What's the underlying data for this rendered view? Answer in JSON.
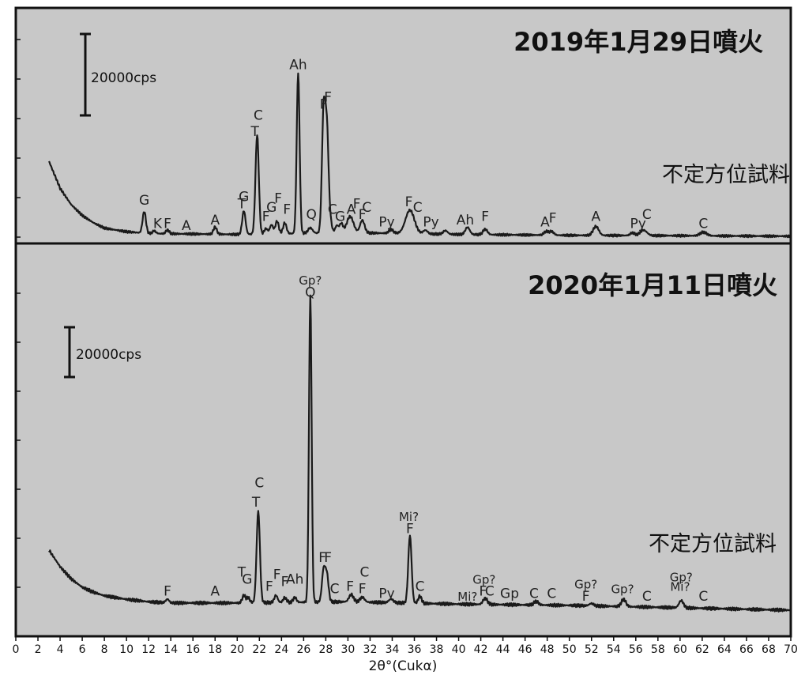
{
  "chart_data": {
    "type": "line",
    "xlabel": "2θ°(Cukα)",
    "xlim": [
      0,
      70
    ],
    "x_ticks": [
      0,
      2,
      4,
      6,
      8,
      10,
      12,
      14,
      16,
      18,
      20,
      22,
      24,
      26,
      28,
      30,
      32,
      34,
      36,
      38,
      40,
      42,
      44,
      46,
      48,
      50,
      52,
      54,
      56,
      58,
      60,
      62,
      64,
      66,
      68,
      70
    ],
    "colors": {
      "panel_bg": "#c8c8c8",
      "trace": "#1a1a1a",
      "frame": "#111111"
    },
    "panels": [
      {
        "title": "2019年1月29日噴火",
        "orientation_label": "不定方位試料",
        "scale_bar_label": "20000cps",
        "scale_bar_cps": 20000,
        "y_max_cps": 105000,
        "series": {
          "baseline": [
            [
              3,
              42000
            ],
            [
              4,
              27000
            ],
            [
              5,
              18000
            ],
            [
              6,
              12000
            ],
            [
              7,
              8000
            ],
            [
              8,
              5000
            ],
            [
              10,
              3000
            ],
            [
              12,
              2000
            ],
            [
              20,
              1500
            ],
            [
              30,
              2500
            ],
            [
              40,
              1500
            ],
            [
              50,
              1000
            ],
            [
              60,
              800
            ],
            [
              70,
              500
            ]
          ],
          "peaks": [
            [
              11.6,
              12000,
              0.15
            ],
            [
              12.5,
              1500,
              0.15
            ],
            [
              13.7,
              2000,
              0.15
            ],
            [
              18.0,
              4000,
              0.15
            ],
            [
              20.6,
              13000,
              0.15
            ],
            [
              21.8,
              55000,
              0.15
            ],
            [
              22.6,
              3000,
              0.15
            ],
            [
              23.1,
              5000,
              0.15
            ],
            [
              23.6,
              7000,
              0.15
            ],
            [
              24.3,
              6000,
              0.15
            ],
            [
              25.5,
              89000,
              0.13
            ],
            [
              26.6,
              3000,
              0.2
            ],
            [
              27.8,
              66000,
              0.15
            ],
            [
              28.1,
              55000,
              0.15
            ],
            [
              28.4,
              6000,
              0.15
            ],
            [
              29.0,
              4000,
              0.15
            ],
            [
              29.4,
              5000,
              0.15
            ],
            [
              30.2,
              9000,
              0.3
            ],
            [
              31.3,
              7000,
              0.2
            ],
            [
              33.9,
              2000,
              0.2
            ],
            [
              35.6,
              13000,
              0.4
            ],
            [
              37.0,
              2000,
              0.2
            ],
            [
              38.8,
              2000,
              0.2
            ],
            [
              40.8,
              4000,
              0.2
            ],
            [
              42.4,
              3000,
              0.2
            ],
            [
              47.9,
              2000,
              0.2
            ],
            [
              48.4,
              2000,
              0.2
            ],
            [
              52.4,
              5000,
              0.25
            ],
            [
              55.7,
              1500,
              0.2
            ],
            [
              56.7,
              3000,
              0.3
            ],
            [
              62.1,
              2000,
              0.3
            ]
          ]
        },
        "peak_labels": [
          {
            "x": 11.6,
            "cps": 18000,
            "text": "G"
          },
          {
            "x": 12.8,
            "cps": 5000,
            "text": "K"
          },
          {
            "x": 13.7,
            "cps": 5000,
            "text": "F"
          },
          {
            "x": 15.4,
            "cps": 4000,
            "text": "A"
          },
          {
            "x": 18.0,
            "cps": 7000,
            "text": "A"
          },
          {
            "x": 20.4,
            "cps": 16000,
            "text": "T"
          },
          {
            "x": 20.6,
            "cps": 20000,
            "text": "G"
          },
          {
            "x": 21.6,
            "cps": 56000,
            "text": "T"
          },
          {
            "x": 21.9,
            "cps": 65000,
            "text": "C"
          },
          {
            "x": 22.6,
            "cps": 9000,
            "text": "F"
          },
          {
            "x": 23.1,
            "cps": 14000,
            "text": "G"
          },
          {
            "x": 23.7,
            "cps": 19000,
            "text": "F"
          },
          {
            "x": 24.5,
            "cps": 13000,
            "text": "F"
          },
          {
            "x": 25.5,
            "cps": 93000,
            "text": "Ah"
          },
          {
            "x": 26.7,
            "cps": 10000,
            "text": "Q"
          },
          {
            "x": 27.8,
            "cps": 71000,
            "text": "F"
          },
          {
            "x": 28.2,
            "cps": 75000,
            "text": "F"
          },
          {
            "x": 28.6,
            "cps": 13000,
            "text": "C"
          },
          {
            "x": 29.3,
            "cps": 9000,
            "text": "G"
          },
          {
            "x": 30.3,
            "cps": 13000,
            "text": "A"
          },
          {
            "x": 30.8,
            "cps": 16000,
            "text": "F"
          },
          {
            "x": 31.3,
            "cps": 10000,
            "text": "F"
          },
          {
            "x": 31.7,
            "cps": 14000,
            "text": "C"
          },
          {
            "x": 33.5,
            "cps": 6000,
            "text": "Py"
          },
          {
            "x": 35.5,
            "cps": 17000,
            "text": "F"
          },
          {
            "x": 36.3,
            "cps": 14000,
            "text": "C"
          },
          {
            "x": 37.5,
            "cps": 6000,
            "text": "Py"
          },
          {
            "x": 40.6,
            "cps": 7000,
            "text": "Ah"
          },
          {
            "x": 42.4,
            "cps": 9000,
            "text": "F"
          },
          {
            "x": 47.8,
            "cps": 6000,
            "text": "A"
          },
          {
            "x": 48.5,
            "cps": 8000,
            "text": "F"
          },
          {
            "x": 52.4,
            "cps": 9000,
            "text": "A"
          },
          {
            "x": 56.2,
            "cps": 5000,
            "text": "Py"
          },
          {
            "x": 57.0,
            "cps": 10000,
            "text": "C"
          },
          {
            "x": 62.1,
            "cps": 5000,
            "text": "C"
          }
        ]
      },
      {
        "title": "2020年1月11日噴火",
        "orientation_label": "不定方位試料",
        "scale_bar_label": "20000cps",
        "scale_bar_cps": 20000,
        "y_max_cps": 137000,
        "series": {
          "baseline": [
            [
              3,
              25000
            ],
            [
              4,
              18000
            ],
            [
              5,
              13000
            ],
            [
              6,
              9500
            ],
            [
              7,
              7500
            ],
            [
              8,
              6000
            ],
            [
              10,
              4500
            ],
            [
              12,
              3500
            ],
            [
              14,
              3000
            ],
            [
              20,
              3000
            ],
            [
              30,
              3500
            ],
            [
              40,
              2500
            ],
            [
              50,
              2000
            ],
            [
              60,
              1000
            ],
            [
              70,
              0
            ]
          ],
          "peaks": [
            [
              13.7,
              1500,
              0.15
            ],
            [
              20.6,
              3000,
              0.15
            ],
            [
              21.0,
              2000,
              0.15
            ],
            [
              21.9,
              38000,
              0.15
            ],
            [
              23.5,
              3000,
              0.15
            ],
            [
              24.3,
              2000,
              0.15
            ],
            [
              25.2,
              2000,
              0.15
            ],
            [
              26.6,
              127000,
              0.12
            ],
            [
              27.8,
              13000,
              0.15
            ],
            [
              28.1,
              11000,
              0.15
            ],
            [
              30.3,
              3000,
              0.2
            ],
            [
              31.3,
              2000,
              0.2
            ],
            [
              33.9,
              1500,
              0.2
            ],
            [
              35.6,
              28000,
              0.15
            ],
            [
              36.5,
              3000,
              0.15
            ],
            [
              42.4,
              2500,
              0.2
            ],
            [
              47.0,
              1500,
              0.2
            ],
            [
              52.0,
              1000,
              0.2
            ],
            [
              54.9,
              3000,
              0.2
            ],
            [
              60.1,
              3000,
              0.2
            ]
          ]
        },
        "peak_labels": [
          {
            "x": 13.7,
            "cps": 6000,
            "text": "F"
          },
          {
            "x": 18.0,
            "cps": 6000,
            "text": "A"
          },
          {
            "x": 20.4,
            "cps": 14000,
            "text": "T"
          },
          {
            "x": 20.9,
            "cps": 11000,
            "text": "G"
          },
          {
            "x": 21.7,
            "cps": 43000,
            "text": "T"
          },
          {
            "x": 22.0,
            "cps": 51000,
            "text": "C"
          },
          {
            "x": 22.9,
            "cps": 8000,
            "text": "F"
          },
          {
            "x": 23.6,
            "cps": 13000,
            "text": "F"
          },
          {
            "x": 24.3,
            "cps": 10000,
            "text": "F"
          },
          {
            "x": 25.2,
            "cps": 11000,
            "text": "Ah"
          },
          {
            "x": 26.6,
            "cps": 135000,
            "text": "Gp?"
          },
          {
            "x": 26.6,
            "cps": 130000,
            "text": "Q"
          },
          {
            "x": 27.7,
            "cps": 20000,
            "text": "F"
          },
          {
            "x": 28.2,
            "cps": 20000,
            "text": "F"
          },
          {
            "x": 28.8,
            "cps": 7000,
            "text": "C"
          },
          {
            "x": 30.2,
            "cps": 8000,
            "text": "F"
          },
          {
            "x": 31.3,
            "cps": 7000,
            "text": "F"
          },
          {
            "x": 31.5,
            "cps": 14000,
            "text": "C"
          },
          {
            "x": 33.5,
            "cps": 5000,
            "text": "Py"
          },
          {
            "x": 35.5,
            "cps": 37000,
            "text": "Mi?"
          },
          {
            "x": 35.6,
            "cps": 32000,
            "text": "F"
          },
          {
            "x": 36.5,
            "cps": 8000,
            "text": "C"
          },
          {
            "x": 40.8,
            "cps": 4000,
            "text": "Mi?"
          },
          {
            "x": 42.3,
            "cps": 11000,
            "text": "Gp?"
          },
          {
            "x": 42.2,
            "cps": 6000,
            "text": "F"
          },
          {
            "x": 42.8,
            "cps": 6000,
            "text": "C"
          },
          {
            "x": 44.6,
            "cps": 5000,
            "text": "Gp"
          },
          {
            "x": 46.8,
            "cps": 5000,
            "text": "C"
          },
          {
            "x": 48.4,
            "cps": 5000,
            "text": "C"
          },
          {
            "x": 51.5,
            "cps": 9000,
            "text": "Gp?"
          },
          {
            "x": 51.5,
            "cps": 4000,
            "text": "F"
          },
          {
            "x": 54.8,
            "cps": 7000,
            "text": "Gp?"
          },
          {
            "x": 57.0,
            "cps": 4000,
            "text": "C"
          },
          {
            "x": 60.1,
            "cps": 12000,
            "text": "Gp?"
          },
          {
            "x": 60.0,
            "cps": 8000,
            "text": "Mi?"
          },
          {
            "x": 62.1,
            "cps": 4000,
            "text": "C"
          }
        ]
      }
    ]
  }
}
